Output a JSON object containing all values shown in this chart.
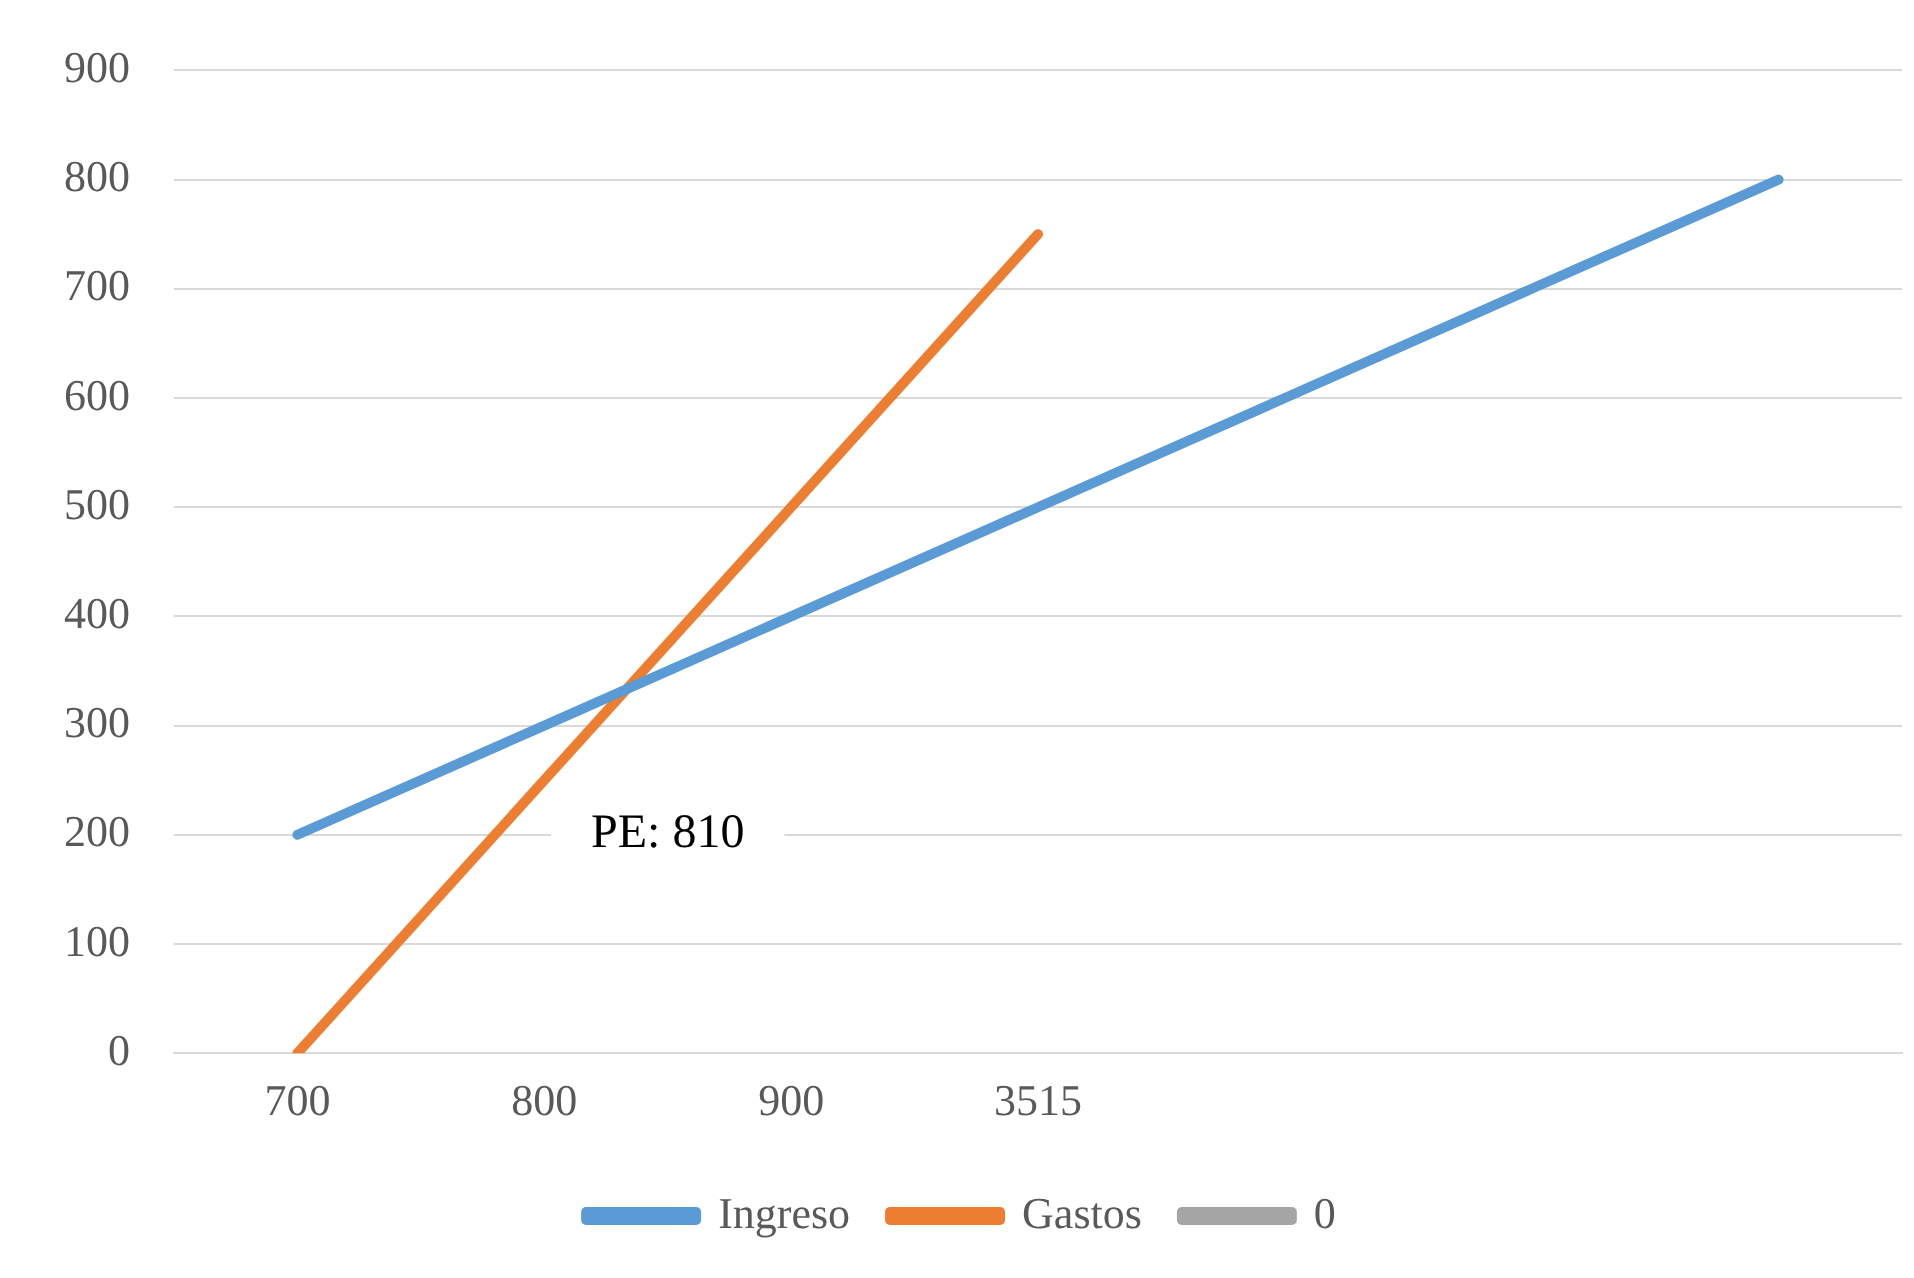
{
  "chart_data": {
    "type": "line",
    "categories": [
      "700",
      "800",
      "900",
      "3515",
      null,
      null,
      null
    ],
    "series": [
      {
        "name": "Ingreso",
        "color": "#5b9bd5",
        "values": [
          200,
          300,
          400,
          500,
          600,
          700,
          800
        ]
      },
      {
        "name": "Gastos",
        "color": "#ed7d31",
        "values": [
          0,
          250,
          500,
          750,
          null,
          null,
          null
        ]
      },
      {
        "name": "0",
        "color": "#a5a5a5",
        "values": [
          null,
          null,
          null,
          null,
          null,
          null,
          null
        ]
      }
    ],
    "ylim": [
      0,
      900
    ],
    "yticks": [
      0,
      100,
      200,
      300,
      400,
      500,
      600,
      700,
      800,
      900
    ],
    "grid": "y",
    "legend": "bottom",
    "marker": "none",
    "annotations": [
      "PE: 810"
    ]
  }
}
